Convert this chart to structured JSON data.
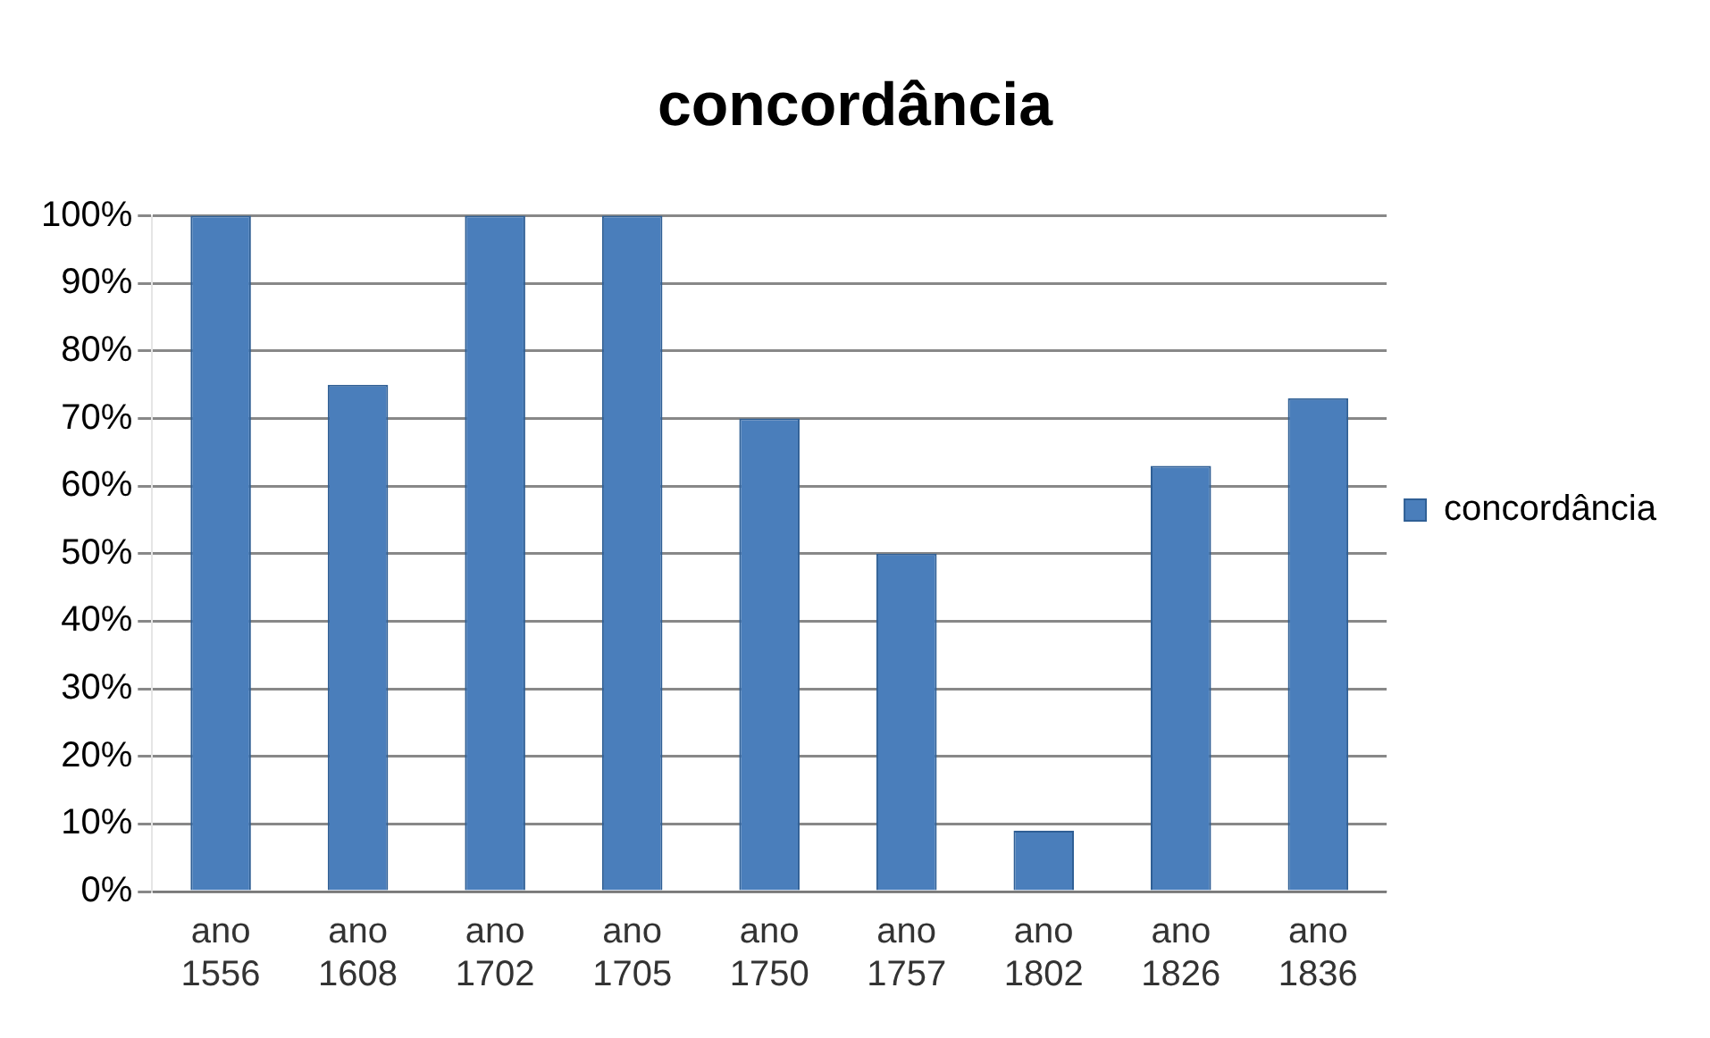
{
  "chart_data": {
    "type": "bar",
    "title": "concordância",
    "categories": [
      "ano 1556",
      "ano 1608",
      "ano 1702",
      "ano 1705",
      "ano 1750",
      "ano 1757",
      "ano 1802",
      "ano 1826",
      "ano 1836"
    ],
    "series": [
      {
        "name": "concordância",
        "color": "#4a7ebb",
        "values": [
          100,
          75,
          100,
          100,
          70,
          50,
          9,
          63,
          73
        ]
      }
    ],
    "ylim": [
      0,
      100
    ],
    "yticks": [
      {
        "value": 0,
        "label": "0%"
      },
      {
        "value": 10,
        "label": "10%"
      },
      {
        "value": 20,
        "label": "20%"
      },
      {
        "value": 30,
        "label": "30%"
      },
      {
        "value": 40,
        "label": "40%"
      },
      {
        "value": 50,
        "label": "50%"
      },
      {
        "value": 60,
        "label": "60%"
      },
      {
        "value": 70,
        "label": "70%"
      },
      {
        "value": 80,
        "label": "80%"
      },
      {
        "value": 90,
        "label": "90%"
      },
      {
        "value": 100,
        "label": "100%"
      }
    ],
    "grid": "y",
    "legend": "right"
  }
}
